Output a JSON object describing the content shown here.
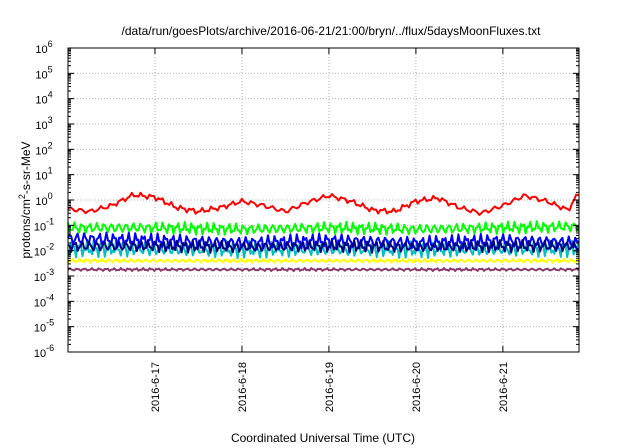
{
  "chart_data": {
    "type": "line",
    "title": "/data/run/goesPlots/archive/2016-06-21/21:00/bryn/../flux/5daysMoonFluxes.txt",
    "xlabel": "Coordinated Universal Time (UTC)",
    "ylabel": "protons/cm²-s-sr-MeV",
    "ylabel_parts": [
      "protons/cm",
      "2",
      "-s-sr-MeV"
    ],
    "yscale": "log",
    "ylim": [
      1e-06,
      1000000.0
    ],
    "yticks": [
      {
        "base": "10",
        "exp": "6"
      },
      {
        "base": "10",
        "exp": "5"
      },
      {
        "base": "10",
        "exp": "4"
      },
      {
        "base": "10",
        "exp": "3"
      },
      {
        "base": "10",
        "exp": "2"
      },
      {
        "base": "10",
        "exp": "1"
      },
      {
        "base": "10",
        "exp": "0"
      },
      {
        "base": "10",
        "exp": "-1"
      },
      {
        "base": "10",
        "exp": "-2"
      },
      {
        "base": "10",
        "exp": "-3"
      },
      {
        "base": "10",
        "exp": "-4"
      },
      {
        "base": "10",
        "exp": "-5"
      },
      {
        "base": "10",
        "exp": "-6"
      }
    ],
    "xlim": [
      "2016-06-16T00:00",
      "2016-06-21T21:00"
    ],
    "xticks": [
      "2016-6-17",
      "2016-6-18",
      "2016-6-19",
      "2016-6-20",
      "2016-6-21"
    ],
    "grid": true,
    "series": [
      {
        "color": "#ff0000",
        "x": [
          "06-16 00h",
          "06-16 06h",
          "06-16 12h",
          "06-16 18h",
          "06-17 00h",
          "06-17 06h",
          "06-17 12h",
          "06-17 18h",
          "06-18 00h",
          "06-18 06h",
          "06-18 12h",
          "06-18 18h",
          "06-19 00h",
          "06-19 06h",
          "06-19 12h",
          "06-19 18h",
          "06-20 00h",
          "06-20 06h",
          "06-20 12h",
          "06-20 18h",
          "06-21 00h",
          "06-21 06h",
          "06-21 12h",
          "06-21 18h",
          "06-21 21h"
        ],
        "y": [
          0.45,
          0.35,
          0.6,
          1.6,
          1.3,
          0.5,
          0.35,
          0.5,
          0.9,
          0.6,
          0.35,
          0.8,
          1.5,
          0.9,
          0.4,
          0.35,
          0.9,
          1.2,
          0.5,
          0.3,
          0.6,
          1.5,
          0.9,
          0.4,
          2.0
        ]
      },
      {
        "color": "#00ff00",
        "x": [
          "06-16 00h",
          "06-17 00h",
          "06-18 00h",
          "06-19 00h",
          "06-20 00h",
          "06-21 00h",
          "06-21 21h"
        ],
        "y": [
          0.08,
          0.08,
          0.07,
          0.08,
          0.07,
          0.08,
          0.09
        ]
      },
      {
        "color": "#00c0c0",
        "x": [
          "06-16 00h",
          "06-17 00h",
          "06-18 00h",
          "06-19 00h",
          "06-20 00h",
          "06-21 00h",
          "06-21 21h"
        ],
        "y": [
          0.012,
          0.012,
          0.011,
          0.012,
          0.011,
          0.012,
          0.012
        ]
      },
      {
        "color": "#0000ff",
        "x": [
          "06-16 00h",
          "06-17 00h",
          "06-18 00h",
          "06-19 00h",
          "06-20 00h",
          "06-21 00h",
          "06-21 21h"
        ],
        "y": [
          0.03,
          0.025,
          0.02,
          0.025,
          0.02,
          0.025,
          0.02
        ]
      },
      {
        "color": "#000080",
        "x": [
          "06-16 00h",
          "06-17 00h",
          "06-18 00h",
          "06-19 00h",
          "06-20 00h",
          "06-21 00h",
          "06-21 21h"
        ],
        "y": [
          0.015,
          0.015,
          0.014,
          0.015,
          0.014,
          0.015,
          0.015
        ]
      },
      {
        "color": "#ffff00",
        "x": [
          "06-16 00h",
          "06-17 00h",
          "06-18 00h",
          "06-19 00h",
          "06-20 00h",
          "06-21 00h",
          "06-21 21h"
        ],
        "y": [
          0.004,
          0.004,
          0.004,
          0.004,
          0.004,
          0.004,
          0.004
        ]
      },
      {
        "color": "#8b3a6b",
        "x": [
          "06-16 00h",
          "06-17 00h",
          "06-18 00h",
          "06-19 00h",
          "06-20 00h",
          "06-21 00h",
          "06-21 21h"
        ],
        "y": [
          0.0018,
          0.0018,
          0.0018,
          0.0018,
          0.0018,
          0.0018,
          0.0018
        ]
      }
    ]
  }
}
